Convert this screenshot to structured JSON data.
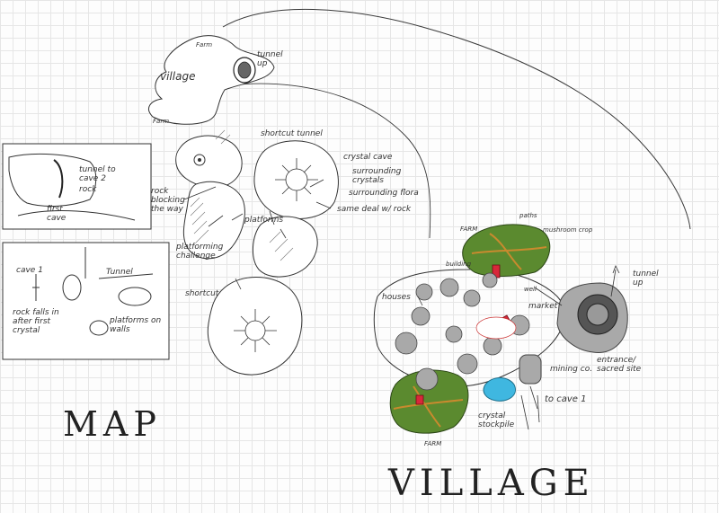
{
  "titles": {
    "map": "MAP",
    "village": "VILLAGE"
  },
  "map_labels": {
    "farm_top": "Farm",
    "village": "village",
    "tunnel_up": "tunnel up",
    "farm_left": "Farm",
    "shortcut_tunnel": "shortcut tunnel",
    "crystal_cave": "crystal cave",
    "surrounding_crystals": "surrounding crystals",
    "surrounding_flora": "surrounding flora",
    "same_deal_w_rock": "same deal w/ rock",
    "rock_blocking_the_way": "rock blocking the way",
    "platforming_challenge": "platforming challenge",
    "platforms": "platforms",
    "shortcut": "shortcut"
  },
  "inset_top": {
    "tunnel_to_cave_2": "tunnel to cave 2",
    "rock": "rock",
    "first_cave": "first cave"
  },
  "inset_bottom": {
    "cave_1": "cave 1",
    "tunnel": "Tunnel",
    "rock_falls": "rock falls in after first crystal",
    "platforms_on_walls": "platforms on walls"
  },
  "village_labels": {
    "farm_top": "FARM",
    "paths": "paths",
    "mushroom_crop": "mushroom crop",
    "building": "building",
    "well": "well",
    "houses": "houses",
    "market": "market",
    "tunnel_up": "tunnel up",
    "entrance_sacred_site": "entrance/ sacred site",
    "mining_co": "mining co.",
    "to_cave_1": "to cave 1",
    "crystal_stockpile": "crystal stockpile",
    "farm_bottom": "FARM"
  },
  "colors": {
    "paper": "#fdfdfd",
    "grid": "#e6e6e6",
    "ink": "#2a2a2a",
    "farm_green": "#5b8a2f",
    "path_orange": "#c98a2e",
    "building_red": "#d8283a",
    "house_gray": "#a9a9a9",
    "crystal_blue": "#3fb7e0"
  }
}
